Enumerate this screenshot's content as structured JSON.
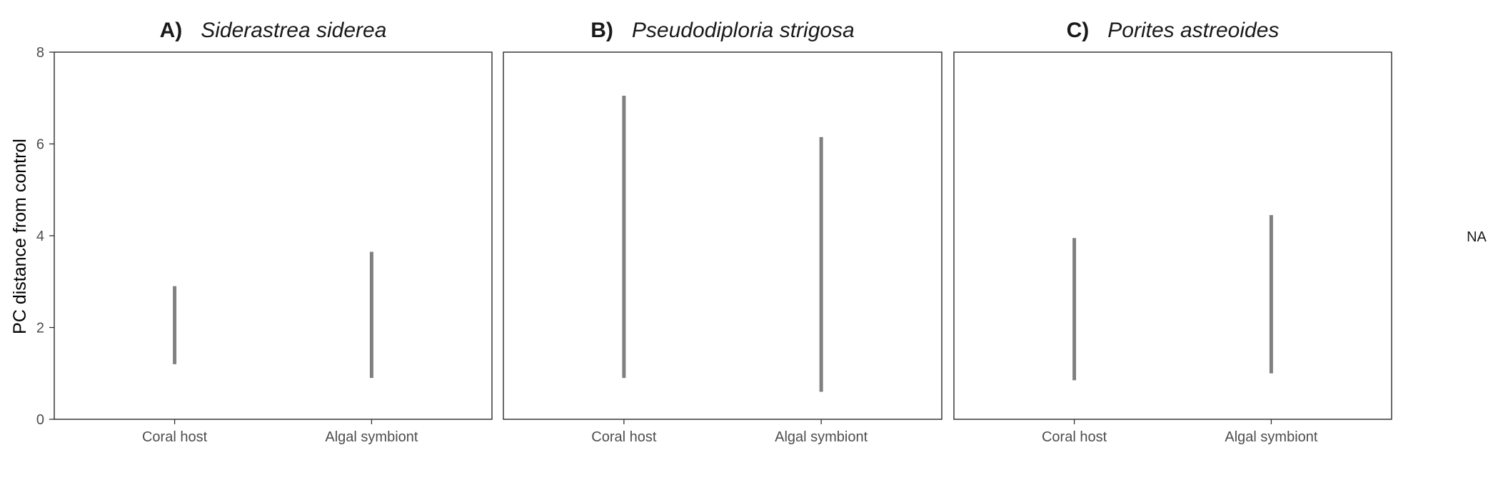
{
  "chart_data": {
    "type": "range",
    "ylabel": "PC distance from control",
    "ylim": [
      0,
      8
    ],
    "y_ticks": [
      "0",
      "2",
      "4",
      "6",
      "8"
    ],
    "categories": [
      "Coral host",
      "Algal symbiont"
    ],
    "color": "#808080",
    "legend_text": "NA",
    "panels": [
      {
        "letter": "A)",
        "species": "Siderastrea siderea",
        "series": [
          {
            "category": "Coral host",
            "low": 1.2,
            "high": 2.9
          },
          {
            "category": "Algal symbiont",
            "low": 0.9,
            "high": 3.65
          }
        ]
      },
      {
        "letter": "B)",
        "species": "Pseudodiploria strigosa",
        "series": [
          {
            "category": "Coral host",
            "low": 0.9,
            "high": 7.05
          },
          {
            "category": "Algal symbiont",
            "low": 0.6,
            "high": 6.15
          }
        ]
      },
      {
        "letter": "C)",
        "species": "Porites astreoides",
        "series": [
          {
            "category": "Coral host",
            "low": 0.85,
            "high": 3.95
          },
          {
            "category": "Algal symbiont",
            "low": 1.0,
            "high": 4.45
          }
        ]
      }
    ]
  }
}
